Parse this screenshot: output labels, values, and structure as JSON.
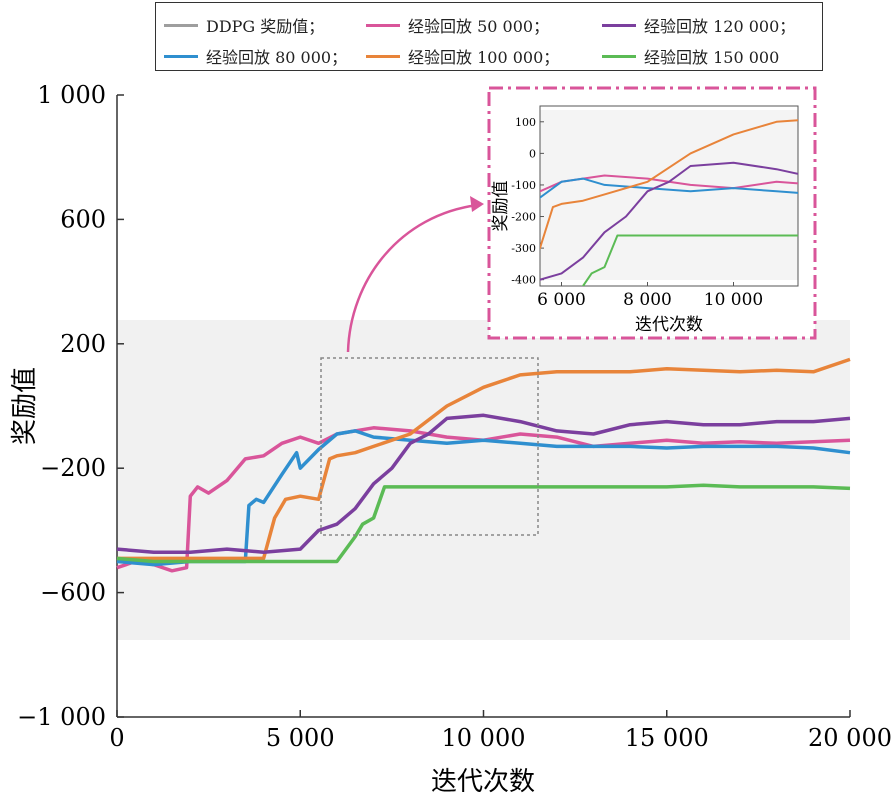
{
  "chart_data": [
    {
      "type": "line",
      "xlabel": "迭代次数",
      "ylabel": "奖励值",
      "xlim": [
        0,
        20000
      ],
      "ylim": [
        -1000,
        1000
      ],
      "xticks": [
        0,
        5000,
        10000,
        15000,
        20000
      ],
      "xtick_labels": [
        "0",
        "5 000",
        "10 000",
        "15 000",
        "20 000"
      ],
      "yticks": [
        -1000,
        -600,
        -200,
        200,
        600,
        1000
      ],
      "ytick_labels": [
        "−1 000",
        "−600",
        "−200",
        "200",
        "600",
        "1 000"
      ],
      "legend": [
        {
          "label": "DDPG 奖励值；",
          "color": "#9e9e9e"
        },
        {
          "label": "经验回放 50 000；",
          "color": "#d9559a"
        },
        {
          "label": "经验回放 120 000；",
          "color": "#7b3f9e"
        },
        {
          "label": "经验回放 80 000；",
          "color": "#2f8fcf"
        },
        {
          "label": "经验回放 100 000；",
          "color": "#e8843a"
        },
        {
          "label": "经验回放 150 000",
          "color": "#5bbb55"
        }
      ],
      "series": [
        {
          "name": "经验回放 50 000",
          "color": "#d9559a",
          "x": [
            0,
            500,
            1000,
            1500,
            1900,
            2000,
            2200,
            2500,
            3000,
            3500,
            4000,
            4500,
            5000,
            5500,
            6000,
            7000,
            8000,
            9000,
            10000,
            11000,
            12000,
            13000,
            14000,
            15000,
            16000,
            17000,
            18000,
            19000,
            20000
          ],
          "y": [
            -520,
            -500,
            -510,
            -530,
            -520,
            -290,
            -260,
            -280,
            -240,
            -170,
            -160,
            -120,
            -100,
            -120,
            -90,
            -70,
            -80,
            -100,
            -110,
            -90,
            -100,
            -130,
            -120,
            -110,
            -120,
            -115,
            -120,
            -115,
            -110
          ]
        },
        {
          "name": "经验回放 80 000",
          "color": "#2f8fcf",
          "x": [
            0,
            1000,
            2000,
            3000,
            3500,
            3600,
            3800,
            4000,
            4500,
            4900,
            5000,
            5500,
            6000,
            6500,
            7000,
            8000,
            9000,
            10000,
            11000,
            12000,
            13000,
            14000,
            15000,
            16000,
            17000,
            18000,
            19000,
            20000
          ],
          "y": [
            -500,
            -510,
            -500,
            -500,
            -500,
            -320,
            -300,
            -310,
            -220,
            -150,
            -200,
            -140,
            -90,
            -80,
            -100,
            -110,
            -120,
            -110,
            -120,
            -130,
            -130,
            -130,
            -135,
            -130,
            -130,
            -130,
            -135,
            -150
          ]
        },
        {
          "name": "经验回放 100 000",
          "color": "#e8843a",
          "x": [
            0,
            1000,
            2000,
            3000,
            4000,
            4300,
            4600,
            5000,
            5500,
            5800,
            6000,
            6500,
            7000,
            8000,
            9000,
            10000,
            11000,
            12000,
            13000,
            14000,
            15000,
            16000,
            17000,
            18000,
            19000,
            20000
          ],
          "y": [
            -490,
            -490,
            -490,
            -490,
            -490,
            -360,
            -300,
            -290,
            -300,
            -170,
            -160,
            -150,
            -130,
            -90,
            0,
            60,
            100,
            110,
            110,
            110,
            120,
            115,
            110,
            115,
            110,
            150
          ]
        },
        {
          "name": "经验回放 120 000",
          "color": "#7b3f9e",
          "x": [
            0,
            1000,
            2000,
            3000,
            4000,
            5000,
            5500,
            6000,
            6500,
            7000,
            7500,
            8000,
            8500,
            9000,
            10000,
            11000,
            12000,
            13000,
            14000,
            15000,
            16000,
            17000,
            18000,
            19000,
            20000
          ],
          "y": [
            -460,
            -470,
            -470,
            -460,
            -470,
            -460,
            -400,
            -380,
            -330,
            -250,
            -200,
            -120,
            -90,
            -40,
            -30,
            -50,
            -80,
            -90,
            -60,
            -50,
            -60,
            -60,
            -50,
            -50,
            -40
          ]
        },
        {
          "name": "经验回放 150 000",
          "color": "#5bbb55",
          "x": [
            0,
            1000,
            2000,
            3000,
            4000,
            5000,
            5500,
            6000,
            6500,
            6700,
            7000,
            7300,
            7500,
            8000,
            9000,
            10000,
            11000,
            12000,
            13000,
            14000,
            15000,
            16000,
            17000,
            18000,
            19000,
            20000
          ],
          "y": [
            -490,
            -500,
            -500,
            -500,
            -500,
            -500,
            -500,
            -500,
            -420,
            -380,
            -360,
            -260,
            -260,
            -260,
            -260,
            -260,
            -260,
            -260,
            -260,
            -260,
            -260,
            -255,
            -260,
            -260,
            -260,
            -265
          ]
        }
      ]
    },
    {
      "type": "line",
      "xlabel": "迭代次数",
      "ylabel": "奖励值",
      "xlim": [
        5500,
        11500
      ],
      "ylim": [
        -420,
        150
      ],
      "xticks": [
        6000,
        8000,
        10000
      ],
      "xtick_labels": [
        "6 000",
        "8 000",
        "10 000"
      ],
      "yticks": [
        100,
        0,
        -100,
        -200,
        -300,
        -400
      ],
      "ytick_labels": [
        "100",
        "0",
        "-100",
        "-200",
        "-300",
        "-400"
      ]
    }
  ]
}
